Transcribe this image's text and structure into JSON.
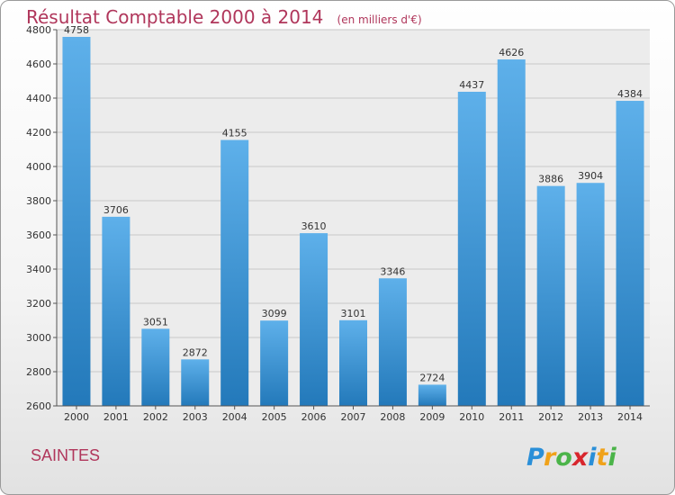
{
  "title": "Résultat Comptable 2000 à 2014",
  "subtitle": "(en milliers d'€)",
  "city": "SAINTES",
  "logo_text": "Proxiti",
  "colors": {
    "title": "#b0365b",
    "bar_top": "#5eb0ea",
    "bar_bottom": "#2379ba",
    "grid": "#c8c8c8",
    "plot_bg": "#ececec"
  },
  "chart_data": {
    "type": "bar",
    "categories": [
      "2000",
      "2001",
      "2002",
      "2003",
      "2004",
      "2005",
      "2006",
      "2007",
      "2008",
      "2009",
      "2010",
      "2011",
      "2012",
      "2013",
      "2014"
    ],
    "values": [
      4758,
      3706,
      3051,
      2872,
      4155,
      3099,
      3610,
      3101,
      3346,
      2724,
      4437,
      4626,
      3886,
      3904,
      4384
    ],
    "ylim": [
      2600,
      4800
    ],
    "yticks": [
      2600,
      2800,
      3000,
      3200,
      3400,
      3600,
      3800,
      4000,
      4200,
      4400,
      4600,
      4800
    ],
    "grid": true,
    "data_labels": true
  }
}
